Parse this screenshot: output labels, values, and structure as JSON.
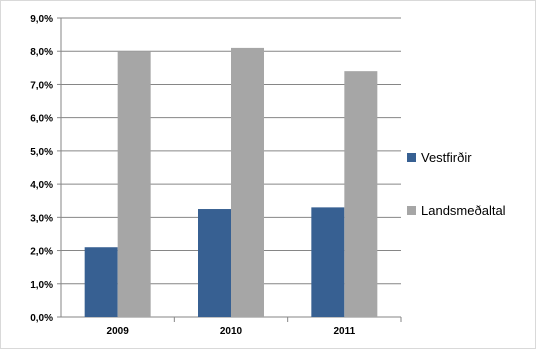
{
  "chart_data": {
    "type": "bar",
    "categories": [
      "2009",
      "2010",
      "2011"
    ],
    "series": [
      {
        "name": "Vestfirðir",
        "values": [
          2.1,
          3.25,
          3.3
        ],
        "color": "#376092"
      },
      {
        "name": "Landsmeðaltal",
        "values": [
          8.0,
          8.1,
          7.4
        ],
        "color": "#a6a6a6"
      }
    ],
    "ylim": [
      0,
      9
    ],
    "yticks": [
      "0,0%",
      "1,0%",
      "2,0%",
      "3,0%",
      "4,0%",
      "5,0%",
      "6,0%",
      "7,0%",
      "8,0%",
      "9,0%"
    ],
    "grid": true,
    "legend_position": "right",
    "title": "",
    "xlabel": "",
    "ylabel": ""
  }
}
